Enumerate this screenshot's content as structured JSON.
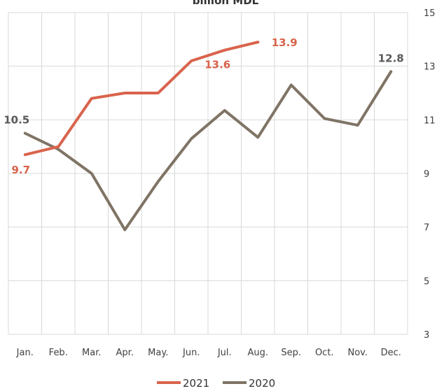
{
  "chart_data": {
    "type": "line",
    "title": "billion MDL",
    "categories": [
      "Jan.",
      "Feb.",
      "Mar.",
      "Apr.",
      "May.",
      "Jun.",
      "Jul.",
      "Aug.",
      "Sep.",
      "Oct.",
      "Nov.",
      "Dec."
    ],
    "y_axis_position": "right",
    "yticks": [
      3,
      5,
      7,
      9,
      11,
      13,
      15
    ],
    "ylim": [
      3,
      15
    ],
    "grid": true,
    "legend_position": "bottom",
    "series": [
      {
        "name": "2021",
        "color": "#d9634c",
        "values": [
          9.7,
          10.0,
          11.8,
          12.0,
          12.0,
          13.2,
          13.6,
          13.9,
          null,
          null,
          null,
          null
        ],
        "data_labels": [
          {
            "index": 0,
            "text": "9.7"
          },
          {
            "index": 6,
            "text": "13.6"
          },
          {
            "index": 7,
            "text": "13.9"
          }
        ]
      },
      {
        "name": "2020",
        "color": "#7f7465",
        "values": [
          10.5,
          9.9,
          9.0,
          6.9,
          8.7,
          10.3,
          11.35,
          10.35,
          12.3,
          11.05,
          10.8,
          12.8
        ],
        "data_labels": [
          {
            "index": 0,
            "text": "10.5"
          },
          {
            "index": 11,
            "text": "12.8"
          }
        ]
      }
    ]
  }
}
